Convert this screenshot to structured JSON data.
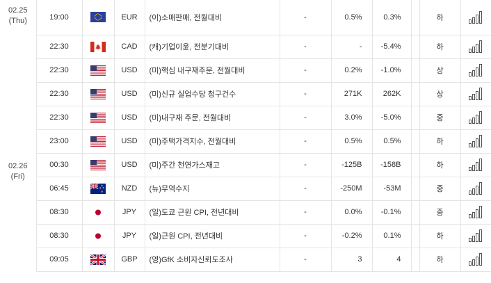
{
  "columns": [
    "date",
    "time",
    "flag",
    "currency",
    "event",
    "importance",
    "actual",
    "forecast",
    "previous",
    "impact",
    "chart"
  ],
  "icons": {
    "chart": "bar-chart-icon"
  },
  "colors": {
    "border": "#e4e4e4",
    "text": "#333333"
  },
  "rows": [
    {
      "date_line1": "02.25",
      "date_line2": "(Thu)",
      "time": "19:00",
      "flag": "eu",
      "currency": "EUR",
      "event": "(이)소매판매, 전월대비",
      "importance": "-",
      "actual": "0.5%",
      "forecast": "0.3%",
      "impact": "하"
    },
    {
      "time": "22:30",
      "flag": "ca",
      "currency": "CAD",
      "event": "(캐)기업이윤, 전분기대비",
      "importance": "-",
      "actual": "-",
      "forecast": "-5.4%",
      "impact": "하"
    },
    {
      "time": "22:30",
      "flag": "us",
      "currency": "USD",
      "event": "(미)핵심 내구재주문, 전월대비",
      "importance": "-",
      "actual": "0.2%",
      "forecast": "-1.0%",
      "impact": "상"
    },
    {
      "time": "22:30",
      "flag": "us",
      "currency": "USD",
      "event": "(미)신규 실업수당 청구건수",
      "importance": "-",
      "actual": "271K",
      "forecast": "262K",
      "impact": "상"
    },
    {
      "time": "22:30",
      "flag": "us",
      "currency": "USD",
      "event": "(미)내구재 주문, 전월대비",
      "importance": "-",
      "actual": "3.0%",
      "forecast": "-5.0%",
      "impact": "중"
    },
    {
      "time": "23:00",
      "flag": "us",
      "currency": "USD",
      "event": "(미)주택가격지수, 전월대비",
      "importance": "-",
      "actual": "0.5%",
      "forecast": "0.5%",
      "impact": "하"
    },
    {
      "date_line1": "02.26",
      "date_line2": "(Fri)",
      "time": "00:30",
      "flag": "us",
      "currency": "USD",
      "event": "(미)주간 천연가스재고",
      "importance": "-",
      "actual": "-125B",
      "forecast": "-158B",
      "impact": "하"
    },
    {
      "time": "06:45",
      "flag": "nz",
      "currency": "NZD",
      "event": "(뉴)무역수지",
      "importance": "-",
      "actual": "-250M",
      "forecast": "-53M",
      "impact": "중"
    },
    {
      "time": "08:30",
      "flag": "jp",
      "currency": "JPY",
      "event": "(일)도쿄 근원 CPI, 전년대비",
      "importance": "-",
      "actual": "0.0%",
      "forecast": "-0.1%",
      "impact": "중"
    },
    {
      "time": "08:30",
      "flag": "jp",
      "currency": "JPY",
      "event": "(일)근원 CPI, 전년대비",
      "importance": "-",
      "actual": "-0.2%",
      "forecast": "0.1%",
      "impact": "하"
    },
    {
      "time": "09:05",
      "flag": "gb",
      "currency": "GBP",
      "event": "(영)GfK 소비자신뢰도조사",
      "importance": "-",
      "actual": "3",
      "forecast": "4",
      "impact": "하"
    }
  ]
}
